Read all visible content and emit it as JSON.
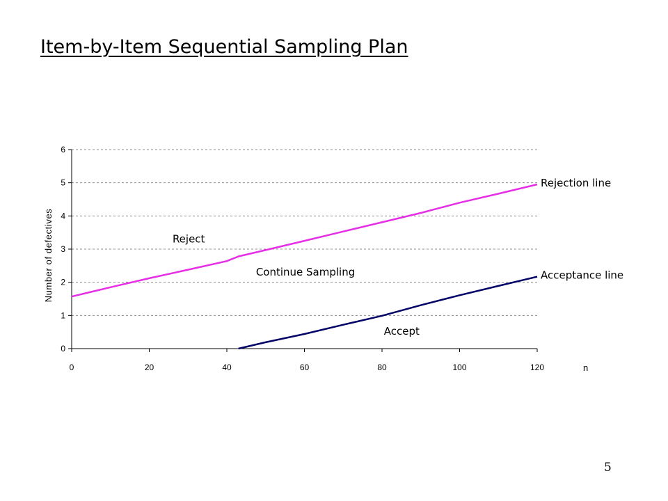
{
  "slide": {
    "title": "Item-by-Item Sequential Sampling Plan",
    "page_number": "5"
  },
  "chart_data": {
    "type": "line",
    "title": "",
    "xlabel": "n",
    "ylabel": "Number of defectives",
    "xlim": [
      0,
      120
    ],
    "ylim": [
      0,
      6
    ],
    "x_ticks": [
      "0",
      "20",
      "40",
      "60",
      "80",
      "100",
      "120"
    ],
    "y_ticks": [
      "0",
      "1",
      "2",
      "3",
      "4",
      "5",
      "6"
    ],
    "grid": "horizontal-dashed",
    "series": [
      {
        "name": "Rejection line",
        "color": "#e62ee6",
        "x": [
          0,
          10,
          20,
          30,
          40,
          43,
          50,
          60,
          70,
          80,
          90,
          100,
          110,
          120
        ],
        "y": [
          1.57,
          1.85,
          2.12,
          2.38,
          2.64,
          2.78,
          2.97,
          3.25,
          3.53,
          3.81,
          4.09,
          4.4,
          4.67,
          4.95
        ]
      },
      {
        "name": "Acceptance line",
        "color": "#000066",
        "x": [
          43,
          50,
          60,
          70,
          80,
          90,
          100,
          110,
          120
        ],
        "y": [
          0.0,
          0.19,
          0.44,
          0.72,
          0.99,
          1.31,
          1.61,
          1.89,
          2.17
        ]
      }
    ],
    "annotations": [
      {
        "text": "Reject",
        "x": 26,
        "y": 3.2
      },
      {
        "text": "Continue Sampling",
        "x": 47.5,
        "y": 2.2
      },
      {
        "text": "Accept",
        "x": 80.5,
        "y": 0.42
      }
    ]
  }
}
